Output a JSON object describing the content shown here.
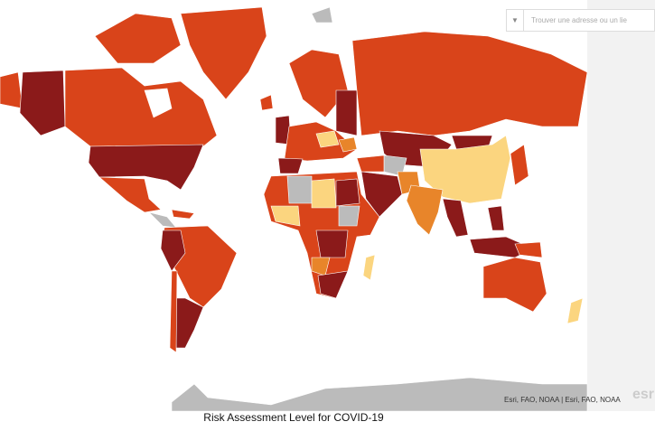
{
  "search": {
    "placeholder": "Trouver une adresse ou un lie"
  },
  "attribution": "Esri, FAO, NOAA | Esri, FAO, NOAA",
  "logo": "esri",
  "caption": "Risk Assessment Level for COVID-19"
}
